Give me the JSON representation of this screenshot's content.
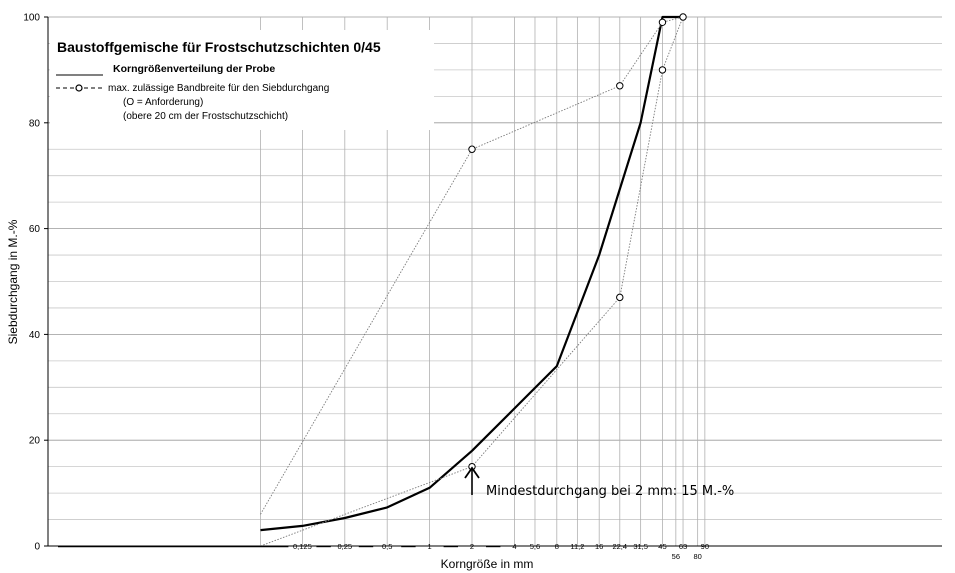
{
  "chart_data": {
    "type": "line",
    "title": "Baustoffgemische für Frostschutzschichten 0/45",
    "xlabel": "Korngröße in mm",
    "ylabel": "Siebdurchgang in M.-%",
    "ylim": [
      0,
      100
    ],
    "yticks": [
      0,
      20,
      40,
      60,
      80,
      100
    ],
    "x_sieve_labels": [
      "0,125",
      "0,25",
      "0,5",
      "1",
      "2",
      "4",
      "5,6",
      "8",
      "11,2",
      "16",
      "22,4",
      "31,5",
      "45",
      "56",
      "63",
      "80",
      "90"
    ],
    "x_sieve_values": [
      0.125,
      0.25,
      0.5,
      1,
      2,
      4,
      5.6,
      8,
      11.2,
      16,
      22.4,
      31.5,
      45,
      56,
      63,
      80,
      90
    ],
    "legend": {
      "sample_label": "Korngrößenverteilung der Probe",
      "band_label": "max. zulässige Bandbreite für den Siebdurchgang",
      "requirement_note": "(O = Anforderung)",
      "layer_note": "(obere 20 cm der Frostschutzschicht)"
    },
    "annotation": "Mindestdurchgang bei 2 mm: 15 M.-%",
    "grid": true,
    "series": [
      {
        "name": "Korngrößenverteilung der Probe",
        "style": "solid",
        "x": [
          0.063,
          0.125,
          0.25,
          0.5,
          1,
          2,
          4,
          8,
          16,
          31.5,
          45,
          63
        ],
        "y": [
          3,
          3.8,
          5.3,
          7.3,
          11,
          18,
          26,
          34,
          55,
          80,
          100,
          100
        ]
      },
      {
        "name": "obere Grenze",
        "style": "dotted",
        "x": [
          0.063,
          2,
          22.4,
          45,
          63
        ],
        "y": [
          6,
          75,
          87,
          99,
          100
        ]
      },
      {
        "name": "untere Grenze",
        "style": "dotted",
        "x": [
          0.063,
          2,
          22.4,
          45,
          63
        ],
        "y": [
          0,
          15,
          47,
          90,
          100
        ]
      }
    ],
    "requirement_points": [
      {
        "x": 2,
        "y": 75
      },
      {
        "x": 22.4,
        "y": 87
      },
      {
        "x": 45,
        "y": 99
      },
      {
        "x": 63,
        "y": 100
      },
      {
        "x": 2,
        "y": 15
      },
      {
        "x": 22.4,
        "y": 47
      },
      {
        "x": 45,
        "y": 90
      }
    ]
  }
}
